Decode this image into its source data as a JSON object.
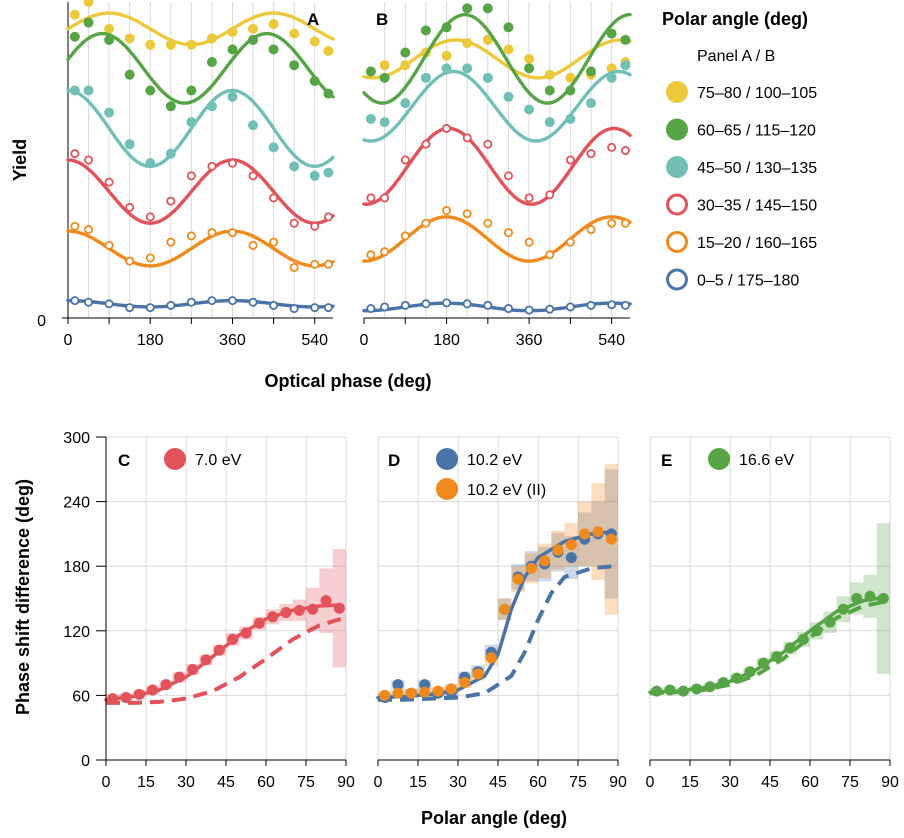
{
  "colors": {
    "yellow": "#ebc93a",
    "green": "#57a447",
    "teal": "#72bfb8",
    "red": "#e1525a",
    "orange": "#f18a1c",
    "blue": "#4a74a8",
    "grid": "#d9d9d9"
  },
  "top": {
    "panel_a_label": "A",
    "panel_b_label": "B",
    "y_axis_label": "Yield",
    "y_zero_label": "0",
    "x_axis_label": "Optical phase (deg)",
    "x_ticks": [
      "0",
      "180",
      "360",
      "540"
    ],
    "legend": {
      "title": "Polar angle (deg)",
      "subtitle": "Panel A / B",
      "entries": [
        {
          "label": "75–80 / 100–105",
          "color": "#ebc93a",
          "filled": true
        },
        {
          "label": "60–65 / 115–120",
          "color": "#57a447",
          "filled": true
        },
        {
          "label": "45–50 / 130–135",
          "color": "#72bfb8",
          "filled": true
        },
        {
          "label": "30–35 / 145–150",
          "color": "#e1525a",
          "filled": false
        },
        {
          "label": "15–20 / 160–165",
          "color": "#f18a1c",
          "filled": false
        },
        {
          "label": "0–5 / 175–180",
          "color": "#4a74a8",
          "filled": false
        }
      ]
    }
  },
  "bottom": {
    "y_axis_label": "Phase shift difference (deg)",
    "x_axis_label": "Polar angle (deg)",
    "y_ticks": [
      "0",
      "60",
      "120",
      "180",
      "240",
      "300"
    ],
    "x_ticks": [
      "0",
      "15",
      "30",
      "45",
      "60",
      "75",
      "90"
    ],
    "panel_c_label": "C",
    "panel_d_label": "D",
    "panel_e_label": "E",
    "legend_c": "7.0 eV",
    "legend_d1": "10.2 eV",
    "legend_d2": "10.2 eV (II)",
    "legend_e": "16.6 eV"
  },
  "chart_data": [
    {
      "type": "scatter",
      "panel": "A",
      "xlabel": "Optical phase (deg)",
      "ylabel": "Yield",
      "xlim": [
        0,
        580
      ],
      "ylim": [
        0,
        1
      ],
      "x": [
        15,
        45,
        90,
        135,
        180,
        225,
        270,
        315,
        360,
        405,
        450,
        495,
        540,
        570
      ],
      "series": [
        {
          "name": "75–80 / 100–105",
          "color": "#ebc93a",
          "filled": true,
          "offset": 0.915,
          "amplitude": 0.05,
          "phase": 90,
          "values": [
            0.96,
            1.0,
            0.915,
            0.885,
            0.865,
            0.865,
            0.865,
            0.885,
            0.905,
            0.915,
            0.93,
            0.9,
            0.875,
            0.845
          ]
        },
        {
          "name": "60–65 / 115–120",
          "color": "#57a447",
          "filled": true,
          "offset": 0.79,
          "amplitude": 0.11,
          "phase": 75,
          "values": [
            0.89,
            0.935,
            0.88,
            0.77,
            0.72,
            0.67,
            0.72,
            0.81,
            0.85,
            0.88,
            0.85,
            0.8,
            0.75,
            0.71
          ]
        },
        {
          "name": "45–50 / 130–135",
          "color": "#72bfb8",
          "filled": true,
          "offset": 0.6,
          "amplitude": 0.12,
          "phase": 0,
          "values": [
            0.72,
            0.72,
            0.65,
            0.55,
            0.49,
            0.52,
            0.62,
            0.67,
            0.7,
            0.61,
            0.54,
            0.48,
            0.45,
            0.46
          ]
        },
        {
          "name": "30–35 / 145–150",
          "color": "#e1525a",
          "filled": false,
          "offset": 0.4,
          "amplitude": 0.1,
          "phase": 0,
          "values": [
            0.52,
            0.5,
            0.43,
            0.35,
            0.32,
            0.37,
            0.45,
            0.48,
            0.49,
            0.45,
            0.38,
            0.3,
            0.29,
            0.32
          ]
        },
        {
          "name": "15–20 / 160–165",
          "color": "#f18a1c",
          "filled": false,
          "offset": 0.22,
          "amplitude": 0.055,
          "phase": 0,
          "values": [
            0.29,
            0.28,
            0.23,
            0.18,
            0.19,
            0.24,
            0.26,
            0.27,
            0.27,
            0.23,
            0.24,
            0.16,
            0.17,
            0.17
          ]
        },
        {
          "name": "0–5 / 175–180",
          "color": "#4a74a8",
          "filled": false,
          "offset": 0.045,
          "amplitude": 0.01,
          "phase": 0,
          "values": [
            0.055,
            0.05,
            0.045,
            0.033,
            0.033,
            0.04,
            0.05,
            0.055,
            0.055,
            0.05,
            0.04,
            0.03,
            0.033,
            0.033
          ]
        }
      ]
    },
    {
      "type": "scatter",
      "panel": "B",
      "xlabel": "Optical phase (deg)",
      "ylabel": "Yield",
      "xlim": [
        0,
        580
      ],
      "ylim": [
        0,
        1
      ],
      "x": [
        15,
        45,
        90,
        135,
        180,
        225,
        270,
        315,
        360,
        405,
        450,
        495,
        540,
        570
      ],
      "series": [
        {
          "name": "75–80 / 100–105",
          "color": "#ebc93a",
          "filled": true,
          "offset": 0.82,
          "amplitude": 0.06,
          "phase": 200,
          "values": [
            0.78,
            0.8,
            0.8,
            0.84,
            0.83,
            0.87,
            0.88,
            0.85,
            0.82,
            0.77,
            0.76,
            0.77,
            0.79,
            0.81
          ]
        },
        {
          "name": "60–65 / 115–120",
          "color": "#57a447",
          "filled": true,
          "offset": 0.82,
          "amplitude": 0.14,
          "phase": 220,
          "values": [
            0.78,
            0.76,
            0.84,
            0.91,
            0.92,
            0.98,
            0.98,
            0.92,
            0.79,
            0.72,
            0.72,
            0.78,
            0.9,
            0.88
          ]
        },
        {
          "name": "45–50 / 130–135",
          "color": "#72bfb8",
          "filled": true,
          "offset": 0.67,
          "amplitude": 0.11,
          "phase": 195,
          "values": [
            0.63,
            0.62,
            0.68,
            0.76,
            0.79,
            0.79,
            0.76,
            0.7,
            0.66,
            0.62,
            0.63,
            0.68,
            0.76,
            0.8
          ]
        },
        {
          "name": "30–35 / 145–150",
          "color": "#e1525a",
          "filled": false,
          "offset": 0.48,
          "amplitude": 0.12,
          "phase": 185,
          "values": [
            0.38,
            0.38,
            0.5,
            0.55,
            0.6,
            0.57,
            0.55,
            0.45,
            0.38,
            0.39,
            0.5,
            0.52,
            0.54,
            0.53
          ]
        },
        {
          "name": "15–20 / 160–165",
          "color": "#f18a1c",
          "filled": false,
          "offset": 0.25,
          "amplitude": 0.07,
          "phase": 180,
          "values": [
            0.2,
            0.21,
            0.26,
            0.3,
            0.34,
            0.33,
            0.3,
            0.27,
            0.24,
            0.2,
            0.24,
            0.28,
            0.3,
            0.3
          ]
        },
        {
          "name": "0–5 / 175–180",
          "color": "#4a74a8",
          "filled": false,
          "offset": 0.035,
          "amplitude": 0.012,
          "phase": 180,
          "values": [
            0.03,
            0.035,
            0.04,
            0.045,
            0.048,
            0.045,
            0.04,
            0.03,
            0.025,
            0.028,
            0.035,
            0.04,
            0.042,
            0.04
          ]
        }
      ]
    },
    {
      "type": "line",
      "panel": "C",
      "xlabel": "Polar angle (deg)",
      "ylabel": "Phase shift difference (deg)",
      "xlim": [
        0,
        90
      ],
      "ylim": [
        0,
        300
      ],
      "series": [
        {
          "name": "7.0 eV",
          "color": "#e1525a",
          "marker": "filled",
          "x": [
            2.5,
            7.5,
            12.5,
            17.5,
            22.5,
            27.5,
            32.5,
            37.5,
            42.5,
            47.5,
            52.5,
            57.5,
            62.5,
            67.5,
            72.5,
            77.5,
            82.5,
            87.5
          ],
          "y": [
            57,
            58,
            61,
            65,
            70,
            77,
            84,
            93,
            102,
            112,
            118,
            127,
            133,
            137,
            139,
            140,
            148,
            141
          ],
          "err": [
            4,
            4,
            4,
            4,
            4,
            5,
            5,
            5,
            5,
            6,
            6,
            6,
            7,
            8,
            10,
            20,
            30,
            55
          ],
          "fit_solid": [
            [
              0,
              56
            ],
            [
              10,
              59
            ],
            [
              20,
              65
            ],
            [
              30,
              77
            ],
            [
              40,
              96
            ],
            [
              50,
              116
            ],
            [
              60,
              131
            ],
            [
              70,
              139
            ],
            [
              80,
              143
            ],
            [
              88,
              144
            ]
          ],
          "fit_dashed": [
            [
              0,
              53
            ],
            [
              10,
              53
            ],
            [
              20,
              54
            ],
            [
              30,
              57
            ],
            [
              40,
              64
            ],
            [
              50,
              77
            ],
            [
              60,
              94
            ],
            [
              70,
              112
            ],
            [
              80,
              125
            ],
            [
              88,
              131
            ]
          ]
        }
      ]
    },
    {
      "type": "line",
      "panel": "D",
      "xlabel": "Polar angle (deg)",
      "ylabel": "Phase shift difference (deg)",
      "xlim": [
        0,
        90
      ],
      "ylim": [
        0,
        300
      ],
      "series": [
        {
          "name": "10.2 eV",
          "color": "#4a74a8",
          "marker": "filled",
          "x": [
            2.5,
            7.5,
            12.5,
            17.5,
            22.5,
            27.5,
            32.5,
            37.5,
            42.5,
            47.5,
            52.5,
            57.5,
            62.5,
            67.5,
            72.5,
            77.5,
            82.5,
            87.5
          ],
          "y": [
            58,
            70,
            62,
            70,
            62,
            63,
            77,
            82,
            100,
            140,
            170,
            180,
            182,
            193,
            188,
            205,
            210,
            210
          ],
          "err": [
            4,
            4,
            4,
            4,
            4,
            5,
            5,
            6,
            7,
            10,
            12,
            14,
            16,
            18,
            20,
            25,
            30,
            60
          ],
          "fit_solid": [
            [
              0,
              58
            ],
            [
              10,
              59
            ],
            [
              20,
              61
            ],
            [
              30,
              65
            ],
            [
              40,
              78
            ],
            [
              45,
              98
            ],
            [
              50,
              140
            ],
            [
              55,
              170
            ],
            [
              60,
              188
            ],
            [
              70,
              203
            ],
            [
              80,
              210
            ],
            [
              88,
              212
            ]
          ],
          "fit_dashed": [
            [
              0,
              56
            ],
            [
              10,
              56
            ],
            [
              20,
              57
            ],
            [
              30,
              58
            ],
            [
              40,
              62
            ],
            [
              50,
              78
            ],
            [
              55,
              100
            ],
            [
              60,
              130
            ],
            [
              65,
              155
            ],
            [
              70,
              170
            ],
            [
              80,
              178
            ],
            [
              88,
              180
            ]
          ]
        },
        {
          "name": "10.2 eV (II)",
          "color": "#f18a1c",
          "marker": "filled",
          "x": [
            2.5,
            7.5,
            12.5,
            17.5,
            22.5,
            27.5,
            32.5,
            37.5,
            42.5,
            47.5,
            52.5,
            57.5,
            62.5,
            67.5,
            72.5,
            77.5,
            82.5,
            87.5
          ],
          "y": [
            60,
            62,
            62,
            63,
            64,
            66,
            72,
            80,
            95,
            140,
            168,
            178,
            185,
            195,
            200,
            210,
            212,
            205
          ],
          "err": [
            4,
            4,
            4,
            4,
            4,
            5,
            5,
            6,
            8,
            10,
            12,
            14,
            16,
            18,
            20,
            30,
            45,
            70
          ]
        }
      ]
    },
    {
      "type": "line",
      "panel": "E",
      "xlabel": "Polar angle (deg)",
      "ylabel": "Phase shift difference (deg)",
      "xlim": [
        0,
        90
      ],
      "ylim": [
        0,
        300
      ],
      "series": [
        {
          "name": "16.6 eV",
          "color": "#57a447",
          "marker": "filled",
          "x": [
            2.5,
            7.5,
            12.5,
            17.5,
            22.5,
            27.5,
            32.5,
            37.5,
            42.5,
            47.5,
            52.5,
            57.5,
            62.5,
            67.5,
            72.5,
            77.5,
            82.5,
            87.5
          ],
          "y": [
            64,
            65,
            64,
            66,
            68,
            72,
            76,
            82,
            90,
            96,
            104,
            112,
            120,
            128,
            140,
            150,
            152,
            150
          ],
          "err": [
            3,
            3,
            3,
            3,
            3,
            3,
            4,
            4,
            5,
            5,
            6,
            7,
            8,
            10,
            12,
            15,
            20,
            70
          ],
          "fit_solid": [
            [
              0,
              63
            ],
            [
              10,
              64
            ],
            [
              20,
              67
            ],
            [
              30,
              73
            ],
            [
              40,
              84
            ],
            [
              50,
              100
            ],
            [
              60,
              120
            ],
            [
              70,
              138
            ],
            [
              80,
              148
            ],
            [
              88,
              151
            ]
          ],
          "fit_dashed": [
            [
              0,
              62
            ],
            [
              10,
              63
            ],
            [
              20,
              65
            ],
            [
              30,
              70
            ],
            [
              40,
              79
            ],
            [
              50,
              94
            ],
            [
              60,
              114
            ],
            [
              70,
              132
            ],
            [
              80,
              143
            ],
            [
              88,
              147
            ]
          ]
        }
      ]
    }
  ]
}
